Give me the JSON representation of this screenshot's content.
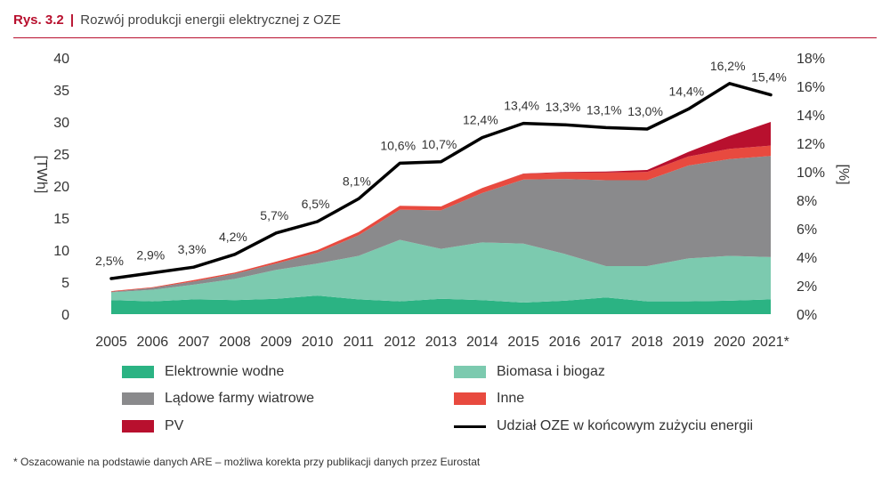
{
  "figure": {
    "number": "Rys. 3.2",
    "separator": "|",
    "title": "Rozwój produkcji energii elektrycznej z OZE"
  },
  "chart_data": {
    "type": "area",
    "stacked": true,
    "x": [
      "2005",
      "2006",
      "2007",
      "2008",
      "2009",
      "2010",
      "2011",
      "2012",
      "2013",
      "2014",
      "2015",
      "2016",
      "2017",
      "2018",
      "2019",
      "2020",
      "2021*"
    ],
    "ylabel": "[TWh]",
    "ylabel_right": "[%]",
    "ylim": [
      0,
      40
    ],
    "yticks": [
      "0",
      "5",
      "10",
      "15",
      "20",
      "25",
      "30",
      "35",
      "40"
    ],
    "ylim_right": [
      0,
      18
    ],
    "yticks_right": [
      "0%",
      "2%",
      "4%",
      "6%",
      "8%",
      "10%",
      "12%",
      "14%",
      "16%",
      "18%"
    ],
    "grid": false,
    "series": [
      {
        "name": "Elektrownie wodne",
        "color": "#2bb383",
        "values": [
          2.2,
          2.0,
          2.3,
          2.2,
          2.4,
          2.9,
          2.3,
          2.0,
          2.4,
          2.2,
          1.8,
          2.1,
          2.6,
          2.0,
          2.0,
          2.1,
          2.3
        ]
      },
      {
        "name": "Biomasa i biogaz",
        "color": "#7ccaaf",
        "values": [
          1.2,
          1.8,
          2.3,
          3.3,
          4.5,
          5.0,
          6.8,
          9.6,
          7.8,
          9.0,
          9.2,
          7.3,
          4.9,
          5.5,
          6.7,
          7.0,
          6.6
        ]
      },
      {
        "name": "Lądowe farmy wiatrowe",
        "color": "#8a8a8c",
        "values": [
          0.1,
          0.3,
          0.5,
          0.8,
          1.0,
          1.7,
          3.2,
          4.7,
          6.0,
          7.7,
          10.0,
          11.7,
          13.4,
          13.4,
          14.5,
          15.1,
          15.8
        ]
      },
      {
        "name": "Inne",
        "color": "#e84a3f",
        "values": [
          0.1,
          0.1,
          0.2,
          0.2,
          0.3,
          0.4,
          0.5,
          0.6,
          0.6,
          0.8,
          0.9,
          1.0,
          1.2,
          1.3,
          1.4,
          1.6,
          1.6
        ]
      },
      {
        "name": "PV",
        "color": "#b8102e",
        "values": [
          0.0,
          0.0,
          0.0,
          0.0,
          0.0,
          0.0,
          0.0,
          0.0,
          0.0,
          0.0,
          0.05,
          0.1,
          0.15,
          0.3,
          0.7,
          2.0,
          3.7
        ]
      },
      {
        "name": "Udział OZE w końcowym zużyciu energii",
        "type": "line",
        "axis": "right",
        "color": "#000000",
        "values": [
          2.5,
          2.9,
          3.3,
          4.2,
          5.7,
          6.5,
          8.1,
          10.6,
          10.7,
          12.4,
          13.4,
          13.3,
          13.1,
          13.0,
          14.4,
          16.2,
          15.4
        ],
        "labels": [
          "2,5%",
          "2,9%",
          "3,3%",
          "4,2%",
          "5,7%",
          "6,5%",
          "8,1%",
          "10,6%",
          "10,7%",
          "12,4%",
          "13,4%",
          "13,3%",
          "13,1%",
          "13,0%",
          "14,4%",
          "16,2%",
          "15,4%"
        ]
      }
    ],
    "legend_position": "bottom"
  },
  "footnote": "* Oszacowanie na podstawie danych ARE – możliwa korekta przy publikacji danych przez Eurostat"
}
